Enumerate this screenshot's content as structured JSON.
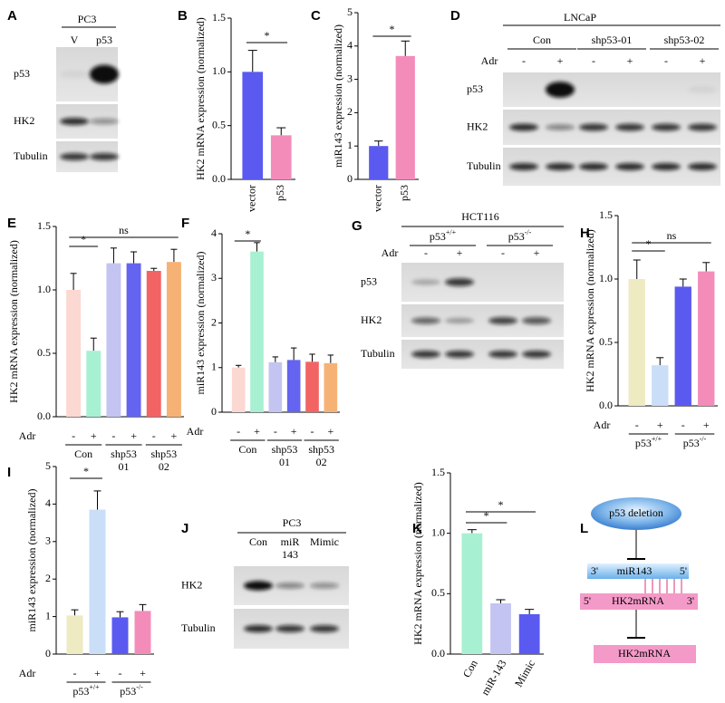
{
  "chart_data": [
    {
      "type": "bar",
      "panel": "B",
      "ylabel": "HK2 mRNA expression (normalized)",
      "categories": [
        "vector",
        "p53"
      ],
      "values": [
        1.0,
        0.41
      ],
      "errors": [
        0.2,
        0.07
      ],
      "colors": [
        "#5a5af0",
        "#f48cba"
      ],
      "ylim": [
        0,
        1.5
      ],
      "yticks": [
        {
          "value": 0,
          "label": "0.0"
        },
        0.5,
        {
          "value": 1,
          "label": "1.0"
        },
        1.5
      ],
      "annotations": [
        "*"
      ]
    },
    {
      "type": "bar",
      "panel": "C",
      "ylabel": "miR143 expression (normalized)",
      "categories": [
        "vector",
        "p53"
      ],
      "values": [
        1.0,
        3.7
      ],
      "errors": [
        0.15,
        0.45
      ],
      "colors": [
        "#5a5af0",
        "#f48cba"
      ],
      "ylim": [
        0,
        5
      ],
      "yticks": [
        0,
        1,
        2,
        3,
        4,
        5
      ],
      "annotations": [
        "*"
      ]
    },
    {
      "type": "bar",
      "panel": "E",
      "ylabel": "HK2 mRNA expression (normalized)",
      "x_row_label": "Adr",
      "categories": [
        "-",
        "+",
        "-",
        "+",
        "-",
        "+"
      ],
      "groups": [
        [
          "Con"
        ],
        [
          "shp53",
          "01"
        ],
        [
          "shp53",
          "02"
        ]
      ],
      "values": [
        1.0,
        0.52,
        1.21,
        1.21,
        1.15,
        1.22
      ],
      "errors": [
        0.13,
        0.1,
        0.12,
        0.09,
        0.02,
        0.1
      ],
      "colors": [
        "#fcd8d2",
        "#a8f0d2",
        "#c4c4f2",
        "#6464f0",
        "#f26464",
        "#f6b274"
      ],
      "ylim": [
        0,
        1.5
      ],
      "yticks": [
        {
          "value": 0,
          "label": "0.0"
        },
        0.5,
        {
          "value": 1,
          "label": "1.0"
        },
        1.5
      ],
      "annotations": [
        "*",
        "ns"
      ]
    },
    {
      "type": "bar",
      "panel": "F",
      "ylabel": "miR143 expression (normalized)",
      "x_row_label": "Adr",
      "categories": [
        "-",
        "+",
        "-",
        "+",
        "-",
        "+"
      ],
      "groups": [
        [
          "Con"
        ],
        [
          "shp53",
          "01"
        ],
        [
          "shp53",
          "02"
        ]
      ],
      "values": [
        1.0,
        3.6,
        1.12,
        1.17,
        1.13,
        1.1
      ],
      "errors": [
        0.05,
        0.2,
        0.12,
        0.27,
        0.17,
        0.18
      ],
      "colors": [
        "#fcd8d2",
        "#a8f0d2",
        "#c4c4f2",
        "#6464f0",
        "#f26464",
        "#f6b274"
      ],
      "ylim": [
        0,
        4
      ],
      "yticks": [
        0,
        1,
        2,
        3,
        4
      ],
      "annotations": [
        "*"
      ]
    },
    {
      "type": "bar",
      "panel": "H",
      "ylabel": "HK2 mRNA expression (normalized)",
      "x_row_label": "Adr",
      "categories": [
        "-",
        "+",
        "-",
        "+"
      ],
      "groups": [
        {
          "text": "p53",
          "sup": "+/+"
        },
        {
          "text": "p53",
          "sup": "-/-"
        }
      ],
      "values": [
        1.0,
        0.32,
        0.94,
        1.06
      ],
      "errors": [
        0.15,
        0.06,
        0.06,
        0.07
      ],
      "colors": [
        "#eeeac2",
        "#cadef8",
        "#5a5af0",
        "#f48cba"
      ],
      "ylim": [
        0,
        1.5
      ],
      "yticks": [
        {
          "value": 0,
          "label": "0.0"
        },
        0.5,
        {
          "value": 1,
          "label": "1.0"
        },
        1.5
      ],
      "annotations": [
        "*",
        "ns"
      ]
    },
    {
      "type": "bar",
      "panel": "I",
      "ylabel": "miR143 expression (normalized)",
      "x_row_label": "Adr",
      "categories": [
        "-",
        "+",
        "-",
        "+"
      ],
      "groups": [
        {
          "text": "p53",
          "sup": "+/+"
        },
        {
          "text": "p53",
          "sup": "-/-"
        }
      ],
      "values": [
        1.03,
        3.85,
        0.98,
        1.15
      ],
      "errors": [
        0.15,
        0.5,
        0.15,
        0.17
      ],
      "colors": [
        "#eeeac2",
        "#cadef8",
        "#5a5af0",
        "#f48cba"
      ],
      "ylim": [
        0,
        5
      ],
      "yticks": [
        0,
        1,
        2,
        3,
        4,
        5
      ],
      "annotations": [
        "*"
      ]
    },
    {
      "type": "bar",
      "panel": "K",
      "ylabel": "HK2 mRNA expression (normalized)",
      "categories": [
        "Con",
        "miR-143",
        "Mimic"
      ],
      "values": [
        1.0,
        0.42,
        0.33
      ],
      "errors": [
        0.03,
        0.03,
        0.04
      ],
      "colors": [
        "#a8f0d2",
        "#c4c4f2",
        "#5a5af0"
      ],
      "ylim": [
        0,
        1.5
      ],
      "yticks": [
        {
          "value": 0,
          "label": "0.0"
        },
        0.5,
        {
          "value": 1,
          "label": "1.0"
        },
        1.5
      ],
      "annotations": [
        "*",
        "*"
      ]
    }
  ],
  "blots": [
    {
      "panel": "A",
      "header": "PC3",
      "lanes": [
        "V",
        "p53"
      ],
      "rows": [
        "p53",
        "HK2",
        "Tubulin"
      ]
    },
    {
      "panel": "D",
      "header": "LNCaP",
      "groups": [
        "Con",
        "shp53-01",
        "shp53-02"
      ],
      "treatment": "Adr",
      "lanes": [
        "-",
        "+",
        "-",
        "+",
        "-",
        "+"
      ],
      "rows": [
        "p53",
        "HK2",
        "Tubulin"
      ]
    },
    {
      "panel": "G",
      "header": "HCT116",
      "groups": [
        {
          "text": "p53",
          "sup": "+/+"
        },
        {
          "text": "p53",
          "sup": "-/-"
        }
      ],
      "treatment": "Adr",
      "lanes": [
        "-",
        "+",
        "-",
        "+"
      ],
      "rows": [
        "p53",
        "HK2",
        "Tubulin"
      ]
    },
    {
      "panel": "J",
      "header": "PC3",
      "lanes": [
        [
          "Con"
        ],
        [
          "miR",
          "143"
        ],
        [
          "Mimic"
        ]
      ],
      "rows": [
        "HK2",
        "Tubulin"
      ]
    }
  ],
  "diagram": {
    "panel": "L",
    "deletion": "p53 deletion",
    "mirna": {
      "three": "3'",
      "label": "miR143",
      "five": "5'"
    },
    "target": {
      "five": "5'",
      "label": "HK2mRNA",
      "three": "3'"
    },
    "product": "HK2mRNA"
  }
}
